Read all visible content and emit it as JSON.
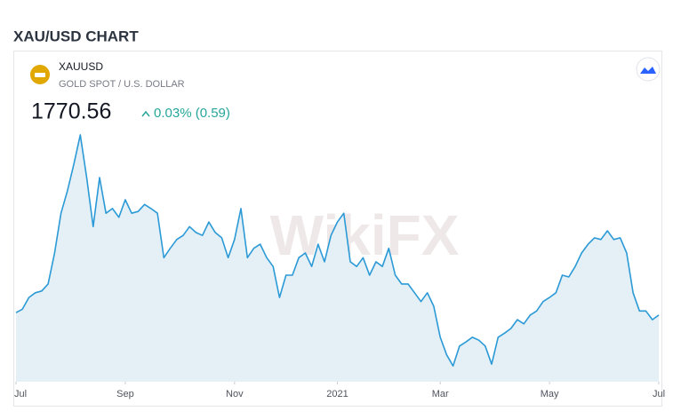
{
  "header": {
    "title": "XAU/USD CHART"
  },
  "widget": {
    "symbol": "XAUUSD",
    "description": "GOLD SPOT / U.S. DOLLAR",
    "price": "1770.56",
    "change": "0.03% (0.59)",
    "watermark": "WikiFX"
  },
  "chart_data": {
    "type": "area",
    "color": "#2b9ad6",
    "fill": "#e4eff6",
    "values": [
      1768,
      1774,
      1794,
      1802,
      1805,
      1817,
      1870,
      1938,
      1976,
      2022,
      2072,
      1999,
      1915,
      1999,
      1938,
      1946,
      1931,
      1961,
      1938,
      1941,
      1953,
      1946,
      1938,
      1862,
      1878,
      1893,
      1900,
      1915,
      1905,
      1900,
      1923,
      1905,
      1896,
      1862,
      1893,
      1946,
      1862,
      1878,
      1885,
      1862,
      1847,
      1794,
      1832,
      1832,
      1862,
      1870,
      1847,
      1885,
      1855,
      1900,
      1923,
      1938,
      1855,
      1847,
      1862,
      1832,
      1855,
      1847,
      1878,
      1832,
      1817,
      1817,
      1802,
      1787,
      1802,
      1779,
      1726,
      1696,
      1677,
      1711,
      1718,
      1726,
      1721,
      1711,
      1680,
      1726,
      1733,
      1741,
      1756,
      1749,
      1764,
      1771,
      1787,
      1794,
      1802,
      1832,
      1829,
      1847,
      1870,
      1885,
      1896,
      1893,
      1908,
      1893,
      1896,
      1870,
      1802,
      1771,
      1771,
      1756,
      1764
    ],
    "xlim": [
      0,
      100
    ],
    "xticks": [
      {
        "value": 0,
        "label": "Jul"
      },
      {
        "value": 17,
        "label": "Sep"
      },
      {
        "value": 34,
        "label": "Nov"
      },
      {
        "value": 50,
        "label": "2021"
      },
      {
        "value": 66,
        "label": "Mar"
      },
      {
        "value": 83,
        "label": "May"
      },
      {
        "value": 100,
        "label": "Jul"
      }
    ],
    "ylim": [
      1650,
      2090
    ]
  }
}
